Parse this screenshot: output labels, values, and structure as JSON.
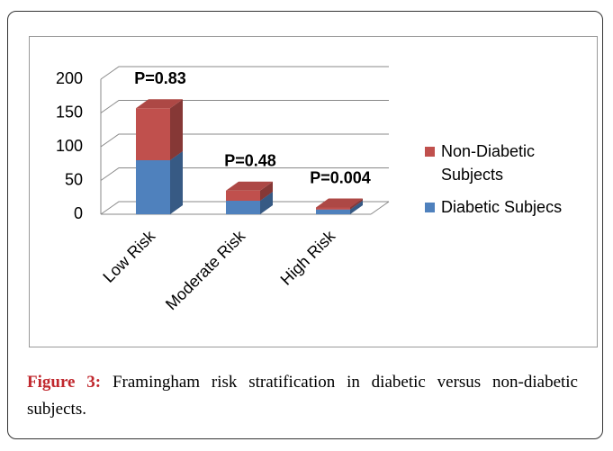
{
  "chart_data": {
    "type": "bar3d_stacked",
    "categories": [
      "Low Risk",
      "Moderate Risk",
      "High Risk"
    ],
    "annotations": [
      "P=0.83",
      "P=0.48",
      "P=0.004"
    ],
    "series": [
      {
        "name": "Diabetic Subjecs",
        "color": "#4f81bd",
        "values": [
          80,
          20,
          7
        ]
      },
      {
        "name": "Non-Diabetic Subjects",
        "color": "#c0504d",
        "values": [
          77,
          15,
          3
        ]
      }
    ],
    "ylim": [
      0,
      200
    ],
    "yticks": [
      0,
      50,
      100,
      150,
      200
    ],
    "grid": true,
    "caption": {
      "label": "Figure 3:",
      "text": " Framingham risk stratification in diabetic versus non-diabetic subjects."
    }
  }
}
